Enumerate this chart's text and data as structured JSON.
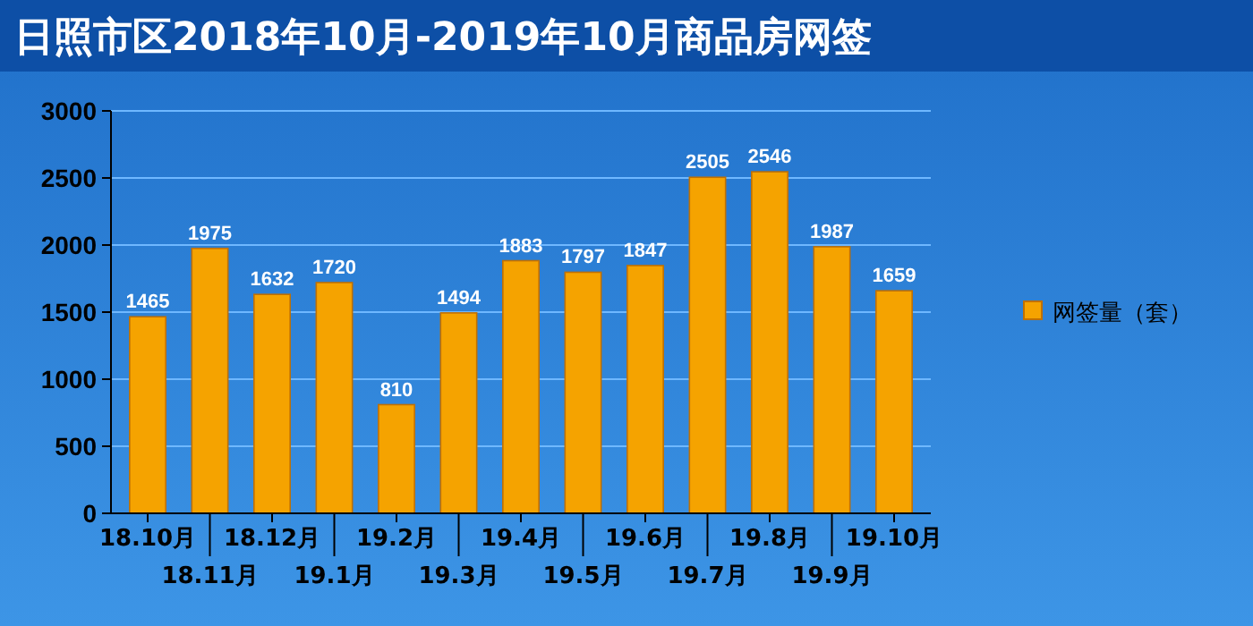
{
  "chart_data": {
    "type": "bar",
    "title": "日照市区2018年10月-2019年10月商品房网签",
    "categories": [
      "18.10月",
      "18.11月",
      "18.12月",
      "19.1月",
      "19.2月",
      "19.3月",
      "19.4月",
      "19.5月",
      "19.6月",
      "19.7月",
      "19.8月",
      "19.9月",
      "19.10月"
    ],
    "series": [
      {
        "name": "网签量（套）",
        "color": "#f5a300",
        "values": [
          1465,
          1975,
          1632,
          1720,
          810,
          1494,
          1883,
          1797,
          1847,
          2505,
          2546,
          1987,
          1659
        ]
      }
    ],
    "ylim": [
      0,
      3000
    ],
    "yticks": [
      0,
      500,
      1000,
      1500,
      2000,
      2500,
      3000
    ],
    "grid": "y",
    "legend": "right",
    "data_labels": true
  }
}
